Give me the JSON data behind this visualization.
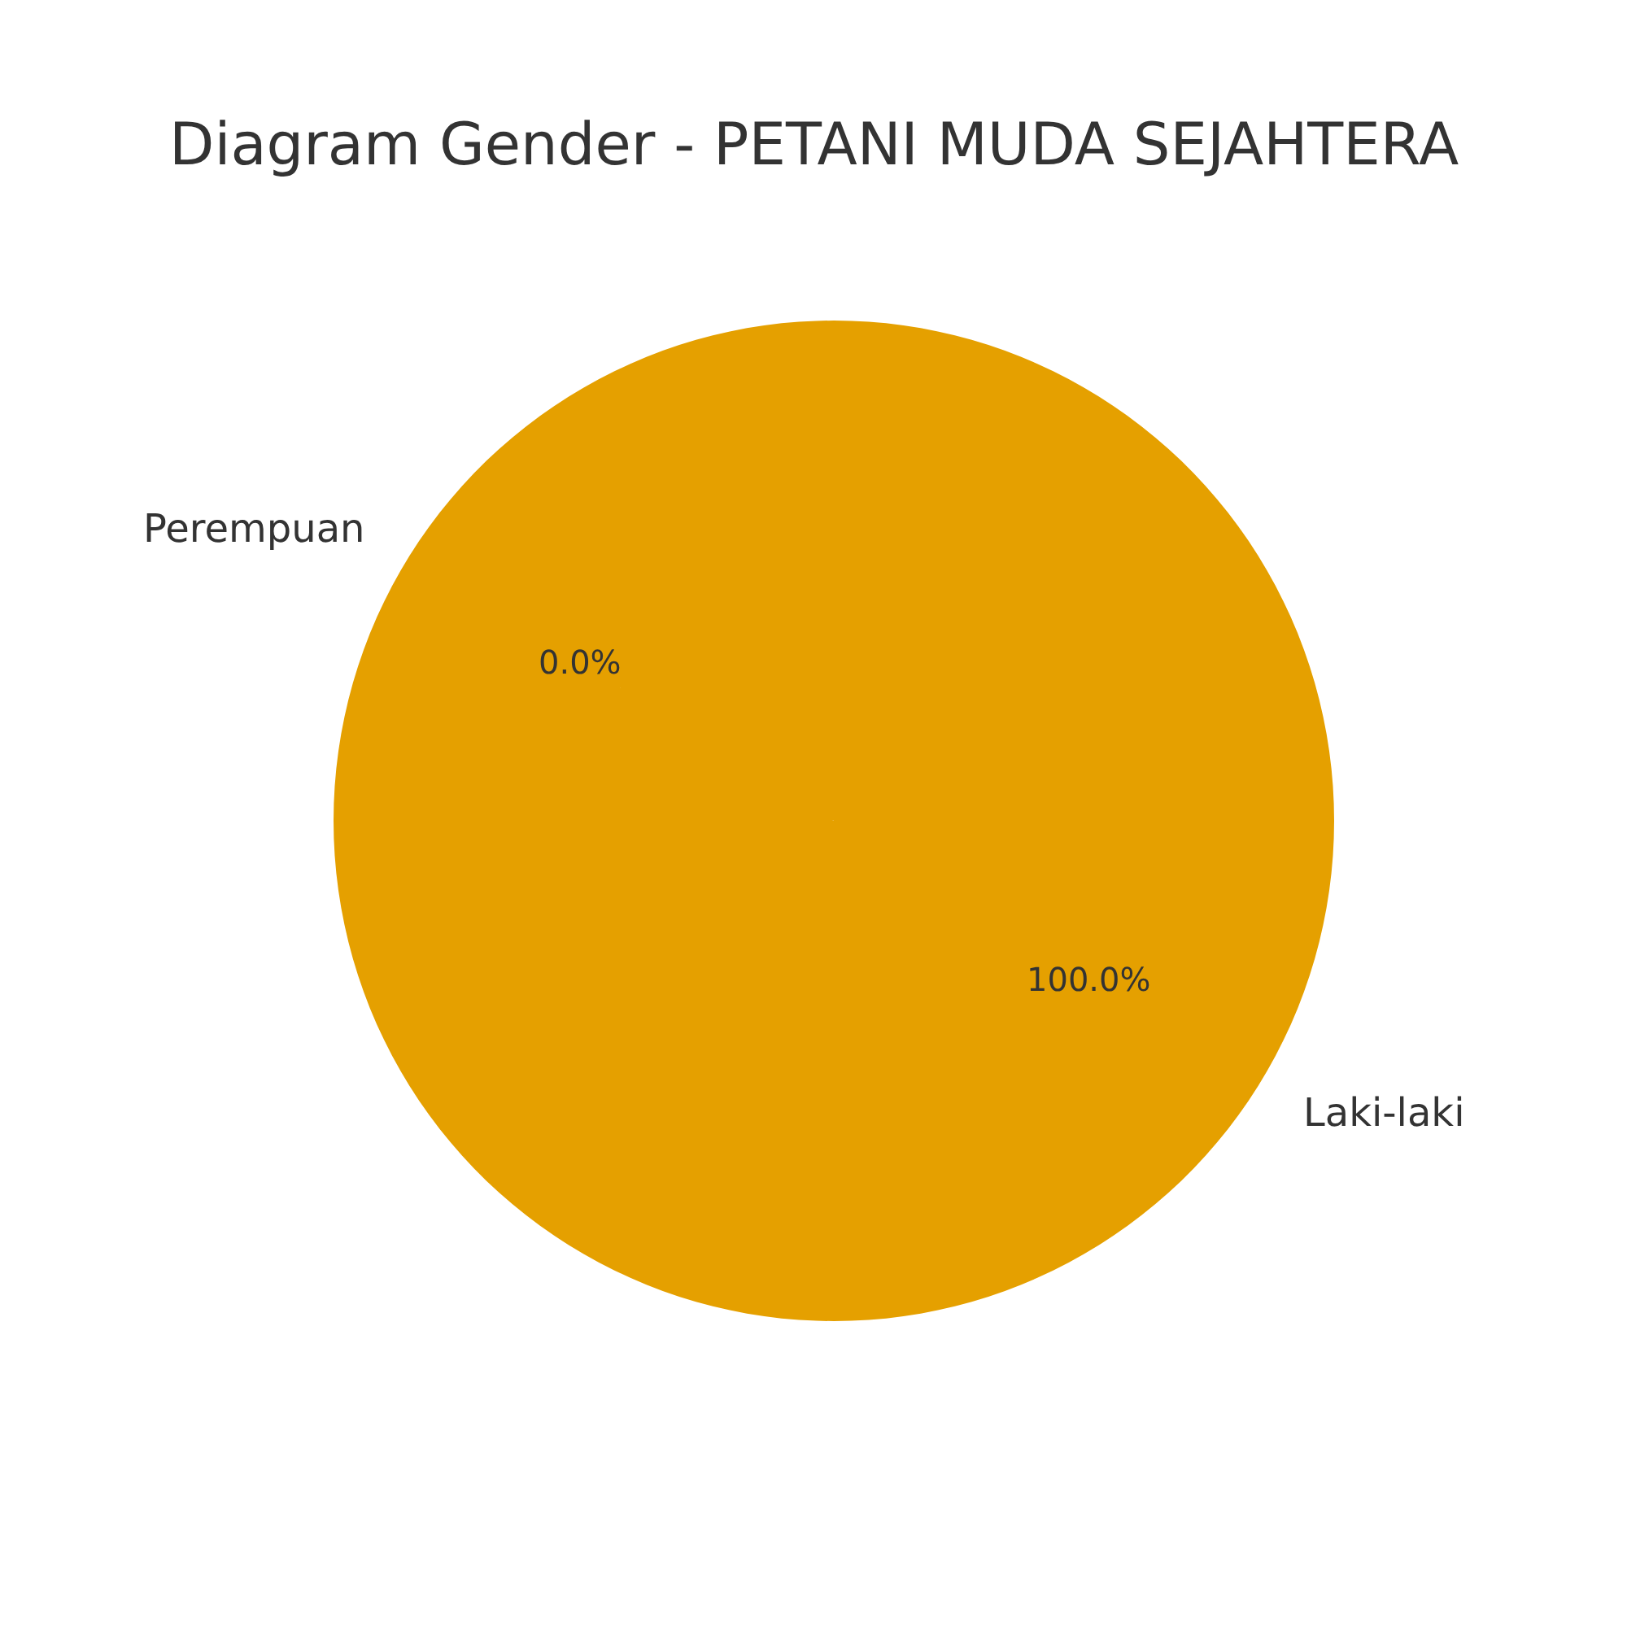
{
  "chart_data": {
    "type": "pie",
    "title": "Diagram Gender - PETANI MUDA SEJAHTERA",
    "categories": [
      "Perempuan",
      "Laki-laki"
    ],
    "values": [
      0,
      100
    ],
    "value_labels": [
      "0.0%",
      "100.0%"
    ],
    "colors": [
      "#0173b2",
      "#e5a000"
    ]
  }
}
